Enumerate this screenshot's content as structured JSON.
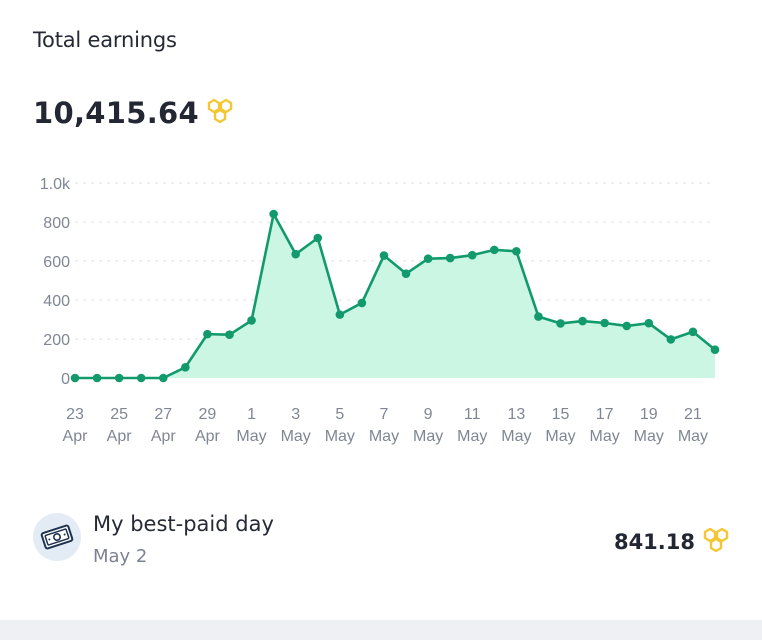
{
  "header": {
    "title": "Total earnings"
  },
  "total": {
    "value": "10,415.64",
    "icon": "honeycomb-icon"
  },
  "colors": {
    "line": "#129a6c",
    "fill": "#c8f5e2",
    "grid": "#e3e6eb",
    "coin": "#f3c734"
  },
  "chart_data": {
    "type": "area",
    "title": "",
    "xlabel": "",
    "ylabel": "",
    "ylim": [
      0,
      1000
    ],
    "yticks": [
      "0",
      "200",
      "400",
      "600",
      "800",
      "1.0k"
    ],
    "ytick_values": [
      0,
      200,
      400,
      600,
      800,
      1000
    ],
    "xticks": [
      [
        "23",
        "Apr"
      ],
      [
        "25",
        "Apr"
      ],
      [
        "27",
        "Apr"
      ],
      [
        "29",
        "Apr"
      ],
      [
        "1",
        "May"
      ],
      [
        "3",
        "May"
      ],
      [
        "5",
        "May"
      ],
      [
        "7",
        "May"
      ],
      [
        "9",
        "May"
      ],
      [
        "11",
        "May"
      ],
      [
        "13",
        "May"
      ],
      [
        "15",
        "May"
      ],
      [
        "17",
        "May"
      ],
      [
        "19",
        "May"
      ],
      [
        "21",
        "May"
      ]
    ],
    "x": [
      "Apr 23",
      "Apr 24",
      "Apr 25",
      "Apr 26",
      "Apr 27",
      "Apr 28",
      "Apr 29",
      "Apr 30",
      "May 1",
      "May 2",
      "May 3",
      "May 4",
      "May 5",
      "May 6",
      "May 7",
      "May 8",
      "May 9",
      "May 10",
      "May 11",
      "May 12",
      "May 13",
      "May 14",
      "May 15",
      "May 16",
      "May 17",
      "May 18",
      "May 19",
      "May 20",
      "May 21",
      "May 22"
    ],
    "values": [
      0,
      0,
      0,
      0,
      0,
      55,
      225,
      222,
      295,
      841,
      635,
      718,
      325,
      385,
      628,
      535,
      612,
      615,
      630,
      657,
      650,
      315,
      280,
      292,
      282,
      267,
      281,
      198,
      237,
      145
    ],
    "grid": true
  },
  "best_day": {
    "label": "My best-paid day",
    "date": "May 2",
    "amount": "841.18",
    "avatar_icon": "money-bill-icon",
    "amount_icon": "honeycomb-icon"
  }
}
